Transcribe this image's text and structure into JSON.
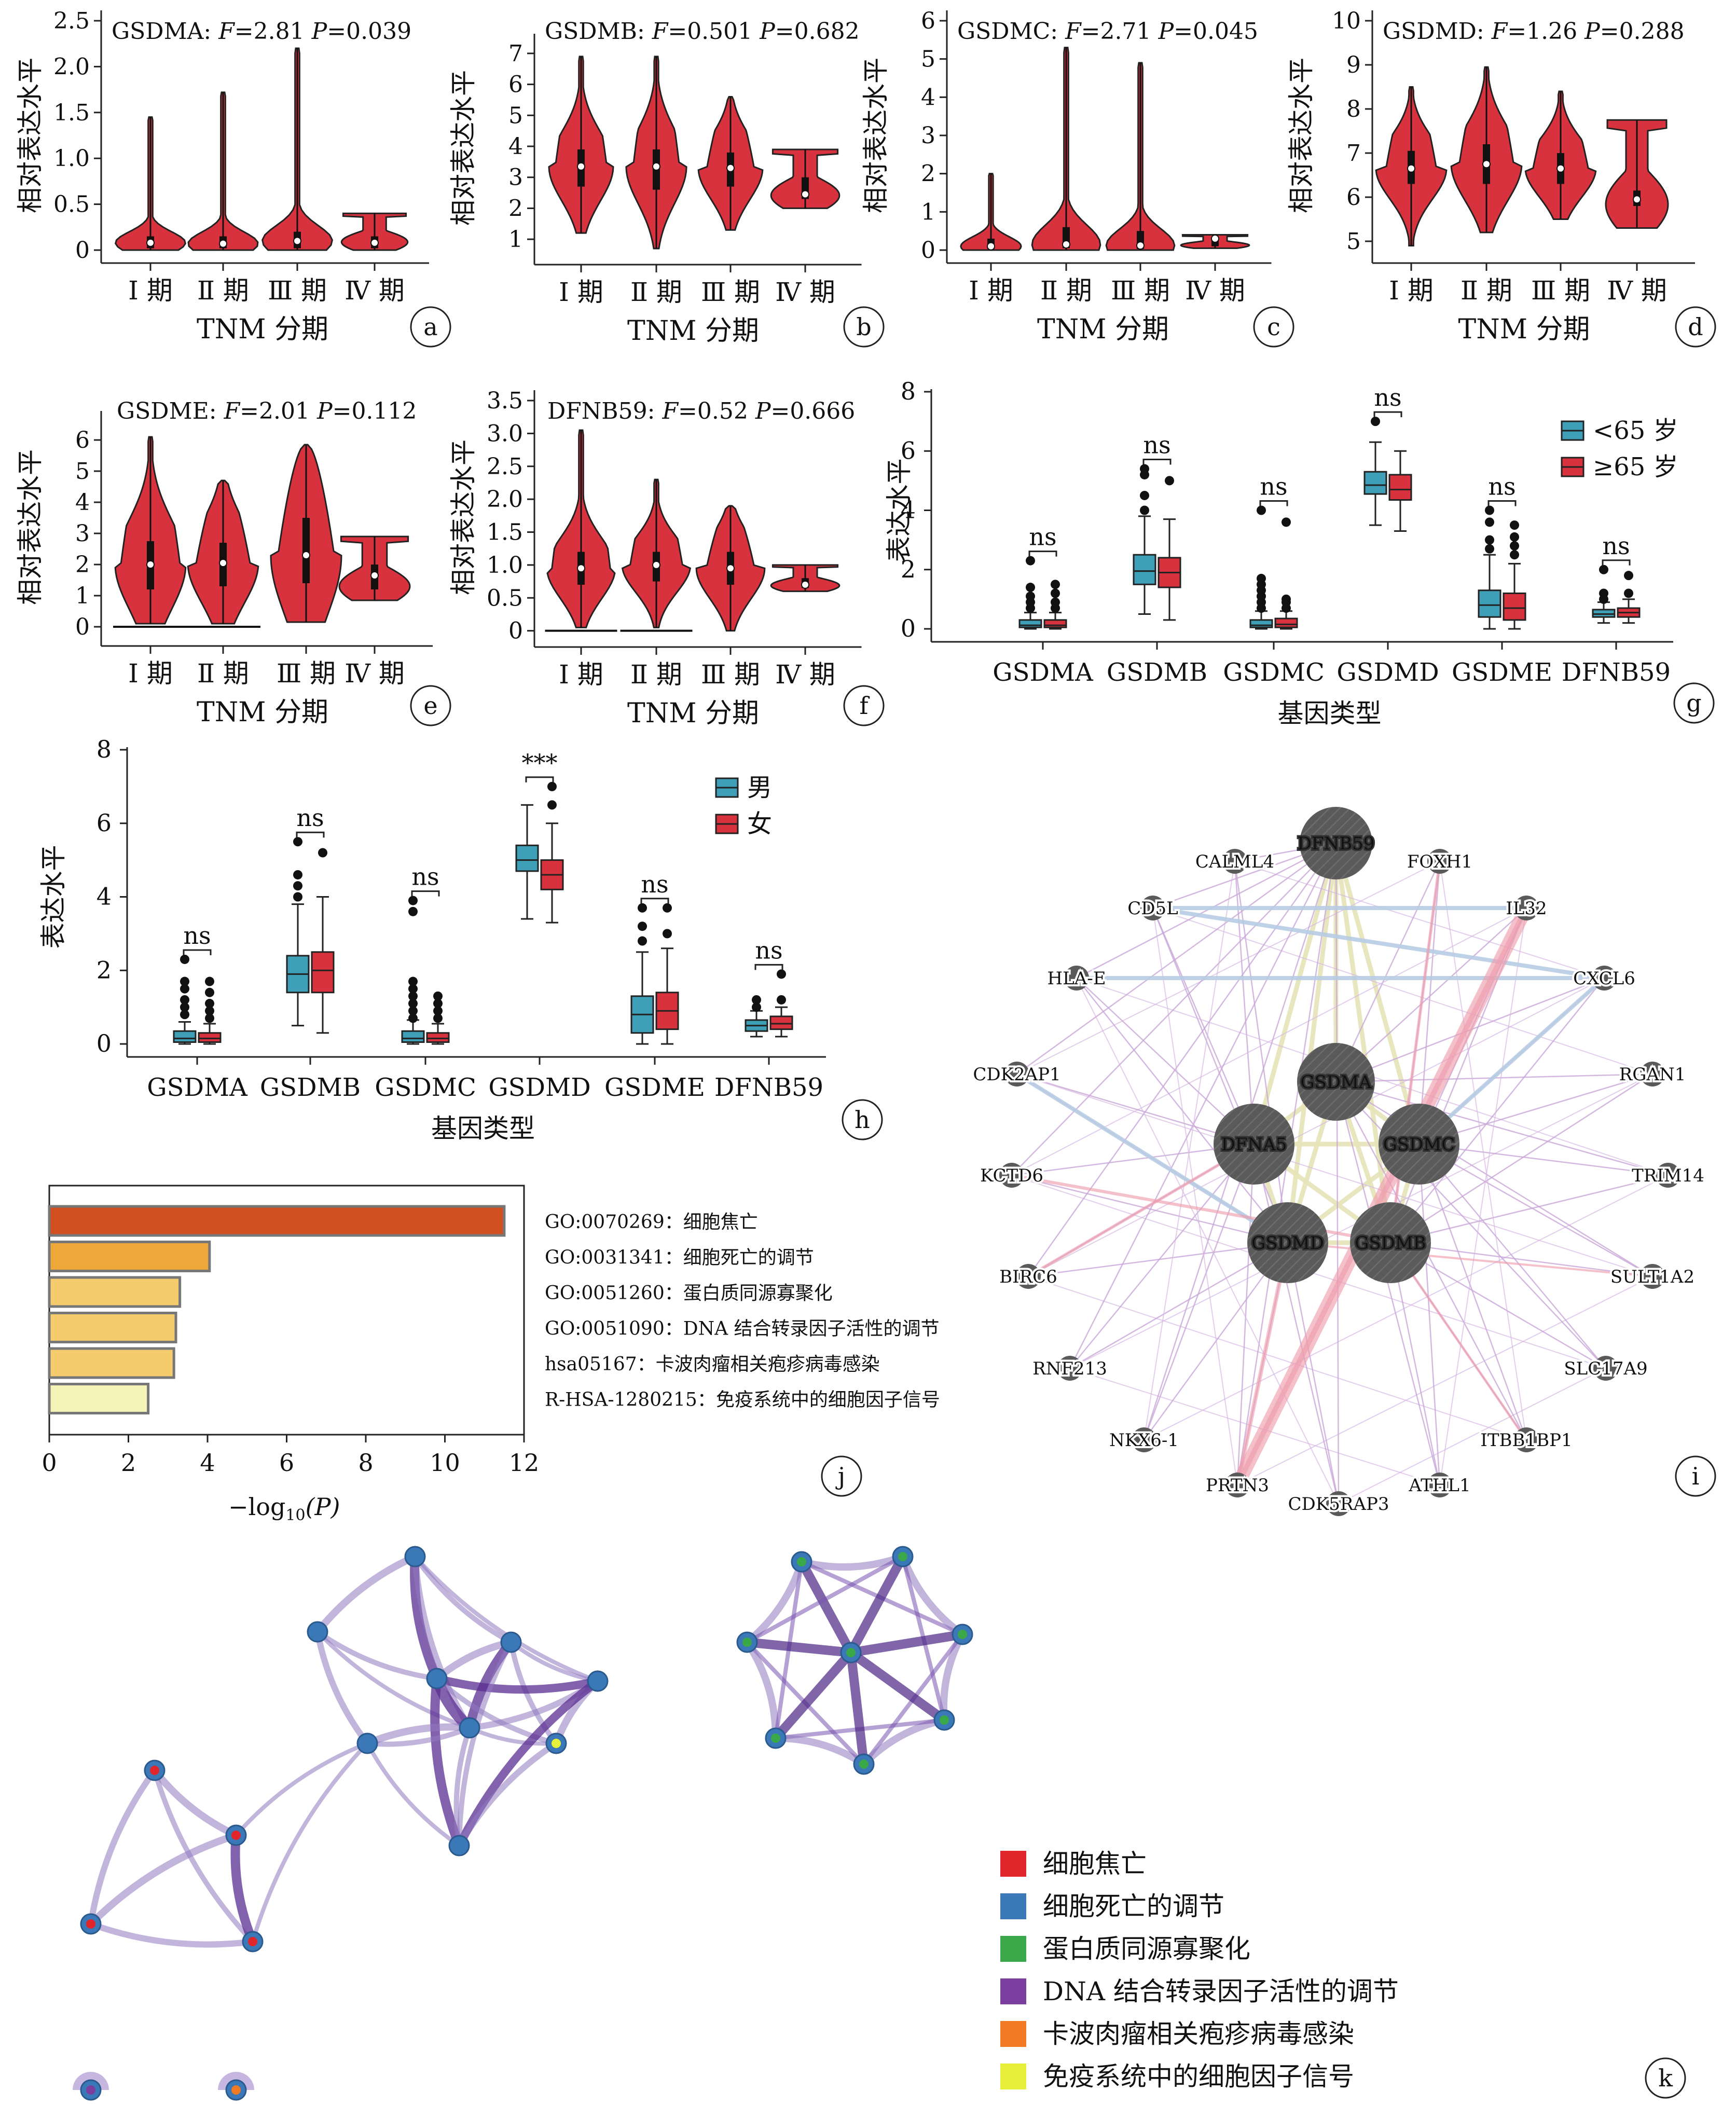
{
  "colors": {
    "violin": "#d7323d",
    "blue_box": "#3f9fb7",
    "red_box": "#d7323d",
    "net_node": "#5a5a5a",
    "enrich": [
      "#d24f20",
      "#eea83a",
      "#f4cc6e",
      "#f4cc6e",
      "#f4cc6e",
      "#f6f3b8"
    ],
    "cluster_legend": [
      "#e0262b",
      "#3b78b7",
      "#3aa748",
      "#7b3fa0",
      "#f07a24",
      "#e8ef3a"
    ]
  },
  "panel_labels": [
    "a",
    "b",
    "c",
    "d",
    "e",
    "f",
    "g",
    "h",
    "i",
    "j",
    "k"
  ],
  "violin_common": {
    "ylabel": "相对表达水平",
    "xlabel": "TNM 分期",
    "categories": [
      "Ⅰ 期",
      "Ⅱ 期",
      "Ⅲ 期",
      "Ⅳ 期"
    ]
  },
  "chart_data": [
    {
      "type": "violin",
      "panel": "a",
      "title": "GSDMA: F=2.81  P=0.039",
      "title_gene": "GSDMA:",
      "title_f": "2.81",
      "title_p": "0.039",
      "ylim": [
        0,
        2.5
      ],
      "yticks": [
        "0",
        "0.5",
        "1.0",
        "1.5",
        "2.0",
        "2.5"
      ],
      "ytick_values": [
        0,
        0.5,
        1.0,
        1.5,
        2.0,
        2.5
      ],
      "groups": [
        {
          "min": 0,
          "q1": 0.02,
          "median": 0.08,
          "q3": 0.15,
          "max": 1.45,
          "peak_width": 0.9
        },
        {
          "min": 0,
          "q1": 0.02,
          "median": 0.07,
          "q3": 0.15,
          "max": 1.72,
          "peak_width": 0.9
        },
        {
          "min": 0,
          "q1": 0.02,
          "median": 0.1,
          "q3": 0.2,
          "max": 2.2,
          "peak_width": 0.9
        },
        {
          "min": 0,
          "q1": 0.02,
          "median": 0.08,
          "q3": 0.15,
          "max": 0.4,
          "peak_width": 0.85,
          "flat_top": true
        }
      ]
    },
    {
      "type": "violin",
      "panel": "b",
      "title": "GSDMB: F=0.501  P=0.682",
      "title_gene": "GSDMB:",
      "title_f": "0.501",
      "title_p": "0.682",
      "ylim": [
        0.6,
        7.3
      ],
      "yticks": [
        "1",
        "2",
        "3",
        "4",
        "5",
        "6",
        "7"
      ],
      "ytick_values": [
        1,
        2,
        3,
        4,
        5,
        6,
        7
      ],
      "groups": [
        {
          "min": 1.2,
          "q1": 2.7,
          "median": 3.35,
          "q3": 3.9,
          "max": 6.9,
          "peak_width": 0.8
        },
        {
          "min": 0.7,
          "q1": 2.6,
          "median": 3.35,
          "q3": 3.9,
          "max": 6.9,
          "peak_width": 0.75
        },
        {
          "min": 1.3,
          "q1": 2.7,
          "median": 3.3,
          "q3": 3.8,
          "max": 5.6,
          "peak_width": 0.8
        },
        {
          "min": 2.0,
          "q1": 2.3,
          "median": 2.45,
          "q3": 3.0,
          "max": 3.9,
          "peak_width": 0.85,
          "flat_top": true
        }
      ]
    },
    {
      "type": "violin",
      "panel": "c",
      "title": "GSDMC: F=2.71  P=0.045",
      "title_gene": "GSDMC:",
      "title_f": "2.71",
      "title_p": "0.045",
      "ylim": [
        0,
        6
      ],
      "yticks": [
        "0",
        "1",
        "2",
        "3",
        "4",
        "5",
        "6"
      ],
      "ytick_values": [
        0,
        1,
        2,
        3,
        4,
        5,
        6
      ],
      "groups": [
        {
          "min": 0,
          "q1": 0.03,
          "median": 0.1,
          "q3": 0.3,
          "max": 2.0,
          "peak_width": 0.75
        },
        {
          "min": 0,
          "q1": 0.05,
          "median": 0.15,
          "q3": 0.6,
          "max": 5.3,
          "peak_width": 0.85
        },
        {
          "min": 0,
          "q1": 0.03,
          "median": 0.12,
          "q3": 0.5,
          "max": 4.9,
          "peak_width": 0.85
        },
        {
          "min": 0.05,
          "q1": 0.1,
          "median": 0.3,
          "q3": 0.35,
          "max": 0.4,
          "peak_width": 0.85,
          "flat_top": true
        }
      ]
    },
    {
      "type": "violin",
      "panel": "d",
      "title": "GSDMD: F=1.26  P=0.288",
      "title_gene": "GSDMD:",
      "title_f": "1.26",
      "title_p": "0.288",
      "ylim": [
        4.8,
        10
      ],
      "yticks": [
        "5",
        "6",
        "7",
        "8",
        "9",
        "10"
      ],
      "ytick_values": [
        5,
        6,
        7,
        8,
        9,
        10
      ],
      "groups": [
        {
          "min": 4.9,
          "q1": 6.3,
          "median": 6.65,
          "q3": 7.05,
          "max": 8.5,
          "peak_width": 0.85
        },
        {
          "min": 5.2,
          "q1": 6.3,
          "median": 6.75,
          "q3": 7.2,
          "max": 8.95,
          "peak_width": 0.85
        },
        {
          "min": 5.5,
          "q1": 6.3,
          "median": 6.65,
          "q3": 7.0,
          "max": 8.4,
          "peak_width": 0.85
        },
        {
          "min": 5.3,
          "q1": 5.8,
          "median": 5.95,
          "q3": 6.15,
          "max": 7.75,
          "peak_width": 0.75,
          "flat_top": true
        }
      ]
    },
    {
      "type": "violin",
      "panel": "e",
      "title": "GSDME: F=2.01  P=0.112",
      "title_gene": "GSDME:",
      "title_f": "2.01",
      "title_p": "0.112",
      "ylim": [
        -0.2,
        6.6
      ],
      "yticks": [
        "0",
        "1",
        "2",
        "3",
        "4",
        "5",
        "6"
      ],
      "ytick_values": [
        0,
        1,
        2,
        3,
        4,
        5,
        6
      ],
      "groups": [
        {
          "min": 0.1,
          "q1": 1.2,
          "median": 2.0,
          "q3": 2.75,
          "max": 6.1,
          "peak_width": 0.85,
          "zero_line": true
        },
        {
          "min": 0.1,
          "q1": 1.3,
          "median": 2.05,
          "q3": 2.7,
          "max": 4.7,
          "peak_width": 0.85,
          "zero_line": true
        },
        {
          "min": 0.15,
          "q1": 1.4,
          "median": 2.3,
          "q3": 3.5,
          "max": 5.85,
          "peak_width": 0.85
        },
        {
          "min": 0.85,
          "q1": 1.2,
          "median": 1.65,
          "q3": 2.0,
          "max": 2.9,
          "peak_width": 0.85,
          "flat_top": true
        }
      ]
    },
    {
      "type": "violin",
      "panel": "f",
      "title": "DFNB59: F=0.52  P=0.666",
      "title_gene": "DFNB59:",
      "title_f": "0.52",
      "title_p": "0.666",
      "ylim": [
        -0.05,
        3.5
      ],
      "yticks": [
        "0",
        "0.5",
        "1.0",
        "1.5",
        "2.0",
        "2.5",
        "3.0",
        "3.5"
      ],
      "ytick_values": [
        0,
        0.5,
        1.0,
        1.5,
        2.0,
        2.5,
        3.0,
        3.5
      ],
      "groups": [
        {
          "min": 0.05,
          "q1": 0.7,
          "median": 0.95,
          "q3": 1.2,
          "max": 3.05,
          "peak_width": 0.85,
          "zero_line": true
        },
        {
          "min": 0.05,
          "q1": 0.75,
          "median": 1.0,
          "q3": 1.2,
          "max": 2.3,
          "peak_width": 0.85,
          "zero_line": true
        },
        {
          "min": 0.0,
          "q1": 0.7,
          "median": 0.95,
          "q3": 1.2,
          "max": 1.9,
          "peak_width": 0.85
        },
        {
          "min": 0.6,
          "q1": 0.65,
          "median": 0.7,
          "q3": 0.8,
          "max": 1.0,
          "peak_width": 0.85,
          "flat_top": true
        }
      ]
    },
    {
      "type": "box",
      "panel": "g",
      "ylabel": "表达水平",
      "xlabel": "基因类型",
      "ylim": [
        0,
        8
      ],
      "yticks": [
        "0",
        "2",
        "4",
        "6",
        "8"
      ],
      "ytick_values": [
        0,
        2,
        4,
        6,
        8
      ],
      "categories": [
        "GSDMA",
        "GSDMB",
        "GSDMC",
        "GSDMD",
        "GSDME",
        "DFNB59"
      ],
      "legend": [
        "<65 岁",
        "≥65 岁"
      ],
      "significance": [
        "ns",
        "ns",
        "ns",
        "ns",
        "ns",
        "ns"
      ],
      "series": [
        {
          "name": "<65 岁",
          "boxes": [
            {
              "min": 0,
              "q1": 0.05,
              "median": 0.12,
              "q3": 0.3,
              "max": 0.55,
              "outliers": [
                0.7,
                0.9,
                1.1,
                1.4,
                2.3
              ]
            },
            {
              "min": 0.5,
              "q1": 1.5,
              "median": 1.95,
              "q3": 2.5,
              "max": 3.8,
              "outliers": [
                4.0,
                4.5,
                5.2,
                5.4
              ]
            },
            {
              "min": 0,
              "q1": 0.05,
              "median": 0.12,
              "q3": 0.3,
              "max": 0.6,
              "outliers": [
                0.7,
                0.9,
                1.1,
                1.3,
                1.5,
                1.7,
                4.0
              ]
            },
            {
              "min": 3.5,
              "q1": 4.55,
              "median": 4.85,
              "q3": 5.3,
              "max": 6.3,
              "outliers": [
                7.0
              ]
            },
            {
              "min": 0,
              "q1": 0.4,
              "median": 0.8,
              "q3": 1.3,
              "max": 2.5,
              "outliers": [
                2.7,
                3.0,
                3.6,
                4.0
              ]
            },
            {
              "min": 0.2,
              "q1": 0.4,
              "median": 0.5,
              "q3": 0.65,
              "max": 0.9,
              "outliers": [
                1.0,
                1.2,
                2.0
              ]
            }
          ]
        },
        {
          "name": "≥65 岁",
          "boxes": [
            {
              "min": 0,
              "q1": 0.05,
              "median": 0.12,
              "q3": 0.3,
              "max": 0.55,
              "outliers": [
                0.7,
                0.9,
                1.2,
                1.5
              ]
            },
            {
              "min": 0.3,
              "q1": 1.4,
              "median": 1.9,
              "q3": 2.4,
              "max": 3.7,
              "outliers": [
                5.0
              ]
            },
            {
              "min": 0,
              "q1": 0.05,
              "median": 0.15,
              "q3": 0.35,
              "max": 0.6,
              "outliers": [
                0.7,
                0.9,
                1.0,
                3.6
              ]
            },
            {
              "min": 3.3,
              "q1": 4.35,
              "median": 4.7,
              "q3": 5.2,
              "max": 6.0,
              "outliers": []
            },
            {
              "min": 0,
              "q1": 0.3,
              "median": 0.7,
              "q3": 1.2,
              "max": 2.2,
              "outliers": [
                2.5,
                2.8,
                3.1,
                3.5
              ]
            },
            {
              "min": 0.2,
              "q1": 0.4,
              "median": 0.55,
              "q3": 0.7,
              "max": 1.0,
              "outliers": [
                1.2,
                1.8
              ]
            }
          ]
        }
      ]
    },
    {
      "type": "box",
      "panel": "h",
      "ylabel": "表达水平",
      "xlabel": "基因类型",
      "ylim": [
        0,
        8
      ],
      "yticks": [
        "0",
        "2",
        "4",
        "6",
        "8"
      ],
      "ytick_values": [
        0,
        2,
        4,
        6,
        8
      ],
      "categories": [
        "GSDMA",
        "GSDMB",
        "GSDMC",
        "GSDMD",
        "GSDME",
        "DFNB59"
      ],
      "legend": [
        "男",
        "女"
      ],
      "significance": [
        "ns",
        "ns",
        "ns",
        "***",
        "ns",
        "ns"
      ],
      "series": [
        {
          "name": "男",
          "boxes": [
            {
              "min": 0,
              "q1": 0.05,
              "median": 0.15,
              "q3": 0.35,
              "max": 0.6,
              "outliers": [
                0.8,
                1.0,
                1.2,
                1.5,
                1.7,
                2.3
              ]
            },
            {
              "min": 0.5,
              "q1": 1.4,
              "median": 1.9,
              "q3": 2.4,
              "max": 3.8,
              "outliers": [
                4.0,
                4.3,
                4.6,
                5.5
              ]
            },
            {
              "min": 0,
              "q1": 0.05,
              "median": 0.15,
              "q3": 0.35,
              "max": 0.65,
              "outliers": [
                0.7,
                0.9,
                1.1,
                1.3,
                1.5,
                1.7,
                3.6,
                3.9
              ]
            },
            {
              "min": 3.4,
              "q1": 4.7,
              "median": 5.0,
              "q3": 5.4,
              "max": 6.5,
              "outliers": []
            },
            {
              "min": 0,
              "q1": 0.3,
              "median": 0.8,
              "q3": 1.3,
              "max": 2.5,
              "outliers": [
                2.8,
                3.2,
                3.7
              ]
            },
            {
              "min": 0.2,
              "q1": 0.35,
              "median": 0.5,
              "q3": 0.65,
              "max": 0.9,
              "outliers": [
                1.0,
                1.2
              ]
            }
          ]
        },
        {
          "name": "女",
          "boxes": [
            {
              "min": 0,
              "q1": 0.05,
              "median": 0.15,
              "q3": 0.3,
              "max": 0.55,
              "outliers": [
                0.7,
                0.9,
                1.1,
                1.4,
                1.7
              ]
            },
            {
              "min": 0.3,
              "q1": 1.4,
              "median": 2.0,
              "q3": 2.5,
              "max": 4.0,
              "outliers": [
                5.2
              ]
            },
            {
              "min": 0,
              "q1": 0.05,
              "median": 0.15,
              "q3": 0.3,
              "max": 0.55,
              "outliers": [
                0.7,
                0.9,
                1.1,
                1.3
              ]
            },
            {
              "min": 3.3,
              "q1": 4.2,
              "median": 4.6,
              "q3": 5.0,
              "max": 6.0,
              "outliers": [
                6.5,
                7.0
              ]
            },
            {
              "min": 0,
              "q1": 0.4,
              "median": 0.9,
              "q3": 1.4,
              "max": 2.6,
              "outliers": [
                3.0,
                3.7
              ]
            },
            {
              "min": 0.2,
              "q1": 0.4,
              "median": 0.55,
              "q3": 0.75,
              "max": 1.0,
              "outliers": [
                1.2,
                1.9
              ]
            }
          ]
        }
      ]
    },
    {
      "type": "bar",
      "panel": "j",
      "orientation": "horizontal",
      "xlabel": "−log10(P)",
      "xlabel_main": "−log",
      "xlabel_sub": "10",
      "xlabel_tail": "(P)",
      "xlim": [
        0,
        12
      ],
      "xticks": [
        "0",
        "2",
        "4",
        "6",
        "8",
        "10",
        "12"
      ],
      "xtick_values": [
        0,
        2,
        4,
        6,
        8,
        10,
        12
      ],
      "categories": [
        "GO:0070269：细胞焦亡",
        "GO:0031341：细胞死亡的调节",
        "GO:0051260：蛋白质同源寡聚化",
        "GO:0051090：DNA 结合转录因子活性的调节",
        "hsa05167：卡波肉瘤相关疱疹病毒感染",
        "R-HSA-1280215：免疫系统中的细胞因子信号"
      ],
      "values": [
        11.5,
        4.05,
        3.3,
        3.2,
        3.15,
        2.5
      ]
    }
  ],
  "network_i": {
    "hubs": [
      "DFNB59",
      "GSDMA",
      "DFNA5",
      "GSDMC",
      "GSDMD",
      "GSDMB"
    ],
    "peripherals": [
      "CALML4",
      "FOXH1",
      "CD5L",
      "IL32",
      "HLA-E",
      "CXCL6",
      "CDK2AP1",
      "RGAN1",
      "KCTD6",
      "TRIM14",
      "BIRC6",
      "SULT1A2",
      "RNF213",
      "SLC17A9",
      "NKX6-1",
      "ITBB1BP1",
      "PRTN3",
      "ATHL1",
      "CDK5RAP3"
    ]
  },
  "cluster_legend_k": [
    "细胞焦亡",
    "细胞死亡的调节",
    "蛋白质同源寡聚化",
    "DNA 结合转录因子活性的调节",
    "卡波肉瘤相关疱疹病毒感染",
    "免疫系统中的细胞因子信号"
  ]
}
